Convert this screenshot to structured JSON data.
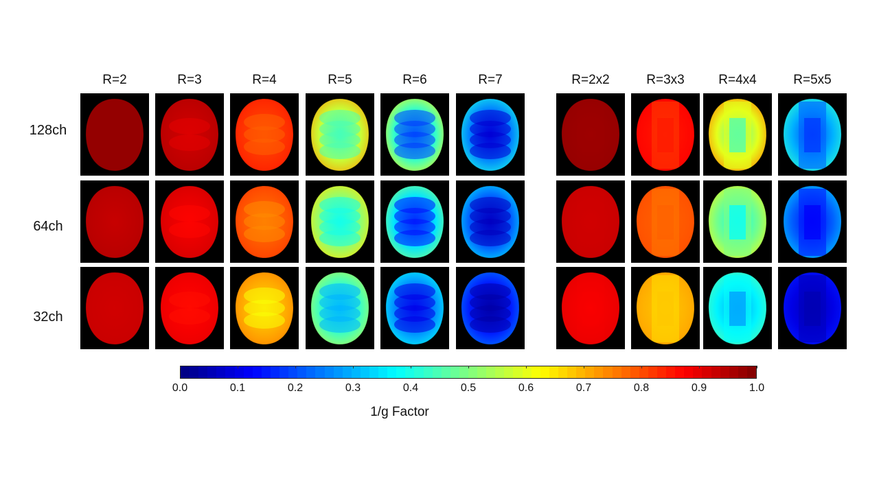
{
  "chart_data": {
    "type": "heatmap",
    "xlabel": "",
    "ylabel": "",
    "columns": [
      "R=2",
      "R=3",
      "R=4",
      "R=5",
      "R=6",
      "R=7",
      "R=2x2",
      "R=3x3",
      "R=4x4",
      "R=5x5"
    ],
    "rows": [
      "128ch",
      "64ch",
      "32ch"
    ],
    "colorbar": {
      "label": "1/g Factor",
      "min": 0.0,
      "max": 1.0,
      "ticks": [
        "0.0",
        "0.1",
        "0.2",
        "0.3",
        "0.4",
        "0.5",
        "0.6",
        "0.7",
        "0.8",
        "0.9",
        "1.0"
      ],
      "colormap": "jet"
    },
    "approx_values": {
      "128ch": [
        {
          "outer": 0.98,
          "center": 0.98,
          "band": 0.98
        },
        {
          "outer": 0.95,
          "center": 0.92,
          "band": 0.9
        },
        {
          "outer": 0.85,
          "center": 0.8,
          "band": 0.78
        },
        {
          "outer": 0.72,
          "center": 0.42,
          "band": 0.45
        },
        {
          "outer": 0.6,
          "center": 0.25,
          "band": 0.18
        },
        {
          "outer": 0.4,
          "center": 0.1,
          "band": 0.08
        },
        {
          "outer": 0.98,
          "center": 0.97,
          "band": 0.97
        },
        {
          "outer": 0.88,
          "center": 0.85,
          "band": 0.82
        },
        {
          "outer": 0.75,
          "center": 0.45,
          "band": 0.6
        },
        {
          "outer": 0.42,
          "center": 0.18,
          "band": 0.22
        }
      ],
      "64ch": [
        {
          "outer": 0.95,
          "center": 0.93,
          "band": 0.92
        },
        {
          "outer": 0.92,
          "center": 0.88,
          "band": 0.87
        },
        {
          "outer": 0.82,
          "center": 0.76,
          "band": 0.74
        },
        {
          "outer": 0.65,
          "center": 0.38,
          "band": 0.4
        },
        {
          "outer": 0.5,
          "center": 0.2,
          "band": 0.14
        },
        {
          "outer": 0.35,
          "center": 0.08,
          "band": 0.06
        },
        {
          "outer": 0.93,
          "center": 0.92,
          "band": 0.92
        },
        {
          "outer": 0.8,
          "center": 0.78,
          "band": 0.76
        },
        {
          "outer": 0.6,
          "center": 0.38,
          "band": 0.5
        },
        {
          "outer": 0.32,
          "center": 0.12,
          "band": 0.15
        }
      ],
      "32ch": [
        {
          "outer": 0.93,
          "center": 0.92,
          "band": 0.9
        },
        {
          "outer": 0.9,
          "center": 0.87,
          "band": 0.86
        },
        {
          "outer": 0.75,
          "center": 0.66,
          "band": 0.62
        },
        {
          "outer": 0.55,
          "center": 0.32,
          "band": 0.3
        },
        {
          "outer": 0.38,
          "center": 0.15,
          "band": 0.1
        },
        {
          "outer": 0.25,
          "center": 0.05,
          "band": 0.04
        },
        {
          "outer": 0.9,
          "center": 0.88,
          "band": 0.88
        },
        {
          "outer": 0.72,
          "center": 0.68,
          "band": 0.66
        },
        {
          "outer": 0.45,
          "center": 0.28,
          "band": 0.38
        },
        {
          "outer": 0.15,
          "center": 0.05,
          "band": 0.06
        }
      ]
    }
  }
}
